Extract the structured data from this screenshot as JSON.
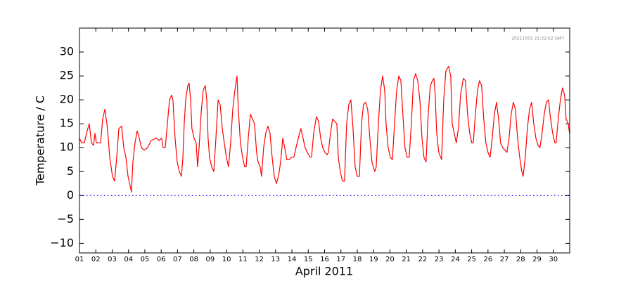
{
  "chart_data": {
    "type": "line",
    "xlabel": "April 2011",
    "ylabel": "Temperature / C",
    "annotation": "20211001 21:32:52 GMT",
    "color": "#ff0000",
    "reference_line": 0,
    "reference_color": "#0000ff",
    "xlim": [
      1,
      31
    ],
    "ylim": [
      -12,
      35
    ],
    "xticks": [
      {
        "value": 1,
        "label": "01"
      },
      {
        "value": 2,
        "label": "02"
      },
      {
        "value": 3,
        "label": "03"
      },
      {
        "value": 4,
        "label": "04"
      },
      {
        "value": 5,
        "label": "05"
      },
      {
        "value": 6,
        "label": "06"
      },
      {
        "value": 7,
        "label": "07"
      },
      {
        "value": 8,
        "label": "08"
      },
      {
        "value": 9,
        "label": "09"
      },
      {
        "value": 10,
        "label": "10"
      },
      {
        "value": 11,
        "label": "11"
      },
      {
        "value": 12,
        "label": "12"
      },
      {
        "value": 13,
        "label": "13"
      },
      {
        "value": 14,
        "label": "14"
      },
      {
        "value": 15,
        "label": "15"
      },
      {
        "value": 16,
        "label": "16"
      },
      {
        "value": 17,
        "label": "17"
      },
      {
        "value": 18,
        "label": "18"
      },
      {
        "value": 19,
        "label": "19"
      },
      {
        "value": 20,
        "label": "20"
      },
      {
        "value": 21,
        "label": "21"
      },
      {
        "value": 22,
        "label": "22"
      },
      {
        "value": 23,
        "label": "23"
      },
      {
        "value": 24,
        "label": "24"
      },
      {
        "value": 25,
        "label": "25"
      },
      {
        "value": 26,
        "label": "26"
      },
      {
        "value": 27,
        "label": "27"
      },
      {
        "value": 28,
        "label": "28"
      },
      {
        "value": 29,
        "label": "29"
      },
      {
        "value": 30,
        "label": "30"
      }
    ],
    "yticks": [
      {
        "value": -10,
        "label": "−10"
      },
      {
        "value": -5,
        "label": "−5"
      },
      0,
      5,
      10,
      15,
      20,
      25,
      30
    ],
    "x": [
      1.0,
      1.13,
      1.3,
      1.43,
      1.6,
      1.73,
      1.86,
      1.95,
      2.03,
      2.16,
      2.29,
      2.42,
      2.55,
      2.68,
      2.76,
      2.85,
      3.02,
      3.15,
      3.28,
      3.41,
      3.58,
      3.71,
      3.84,
      3.97,
      4.1,
      4.18,
      4.27,
      4.4,
      4.53,
      4.66,
      4.79,
      4.96,
      5.17,
      5.39,
      5.69,
      5.86,
      6.03,
      6.12,
      6.25,
      6.38,
      6.51,
      6.64,
      6.72,
      6.85,
      6.98,
      7.11,
      7.24,
      7.33,
      7.41,
      7.5,
      7.63,
      7.71,
      7.8,
      7.88,
      8.01,
      8.14,
      8.23,
      8.32,
      8.44,
      8.57,
      8.7,
      8.79,
      8.87,
      8.96,
      9.09,
      9.22,
      9.35,
      9.48,
      9.61,
      9.74,
      9.86,
      9.99,
      10.12,
      10.25,
      10.38,
      10.51,
      10.64,
      10.72,
      10.85,
      10.98,
      11.11,
      11.2,
      11.33,
      11.46,
      11.59,
      11.71,
      11.84,
      11.93,
      12.06,
      12.14,
      12.27,
      12.4,
      12.53,
      12.66,
      12.79,
      12.92,
      13.05,
      13.18,
      13.31,
      13.44,
      13.56,
      13.69,
      13.82,
      13.99,
      14.12,
      14.25,
      14.43,
      14.55,
      14.68,
      14.81,
      14.94,
      15.11,
      15.2,
      15.33,
      15.5,
      15.63,
      15.76,
      15.89,
      16.02,
      16.15,
      16.23,
      16.36,
      16.49,
      16.62,
      16.75,
      16.84,
      16.96,
      17.09,
      17.22,
      17.35,
      17.48,
      17.61,
      17.74,
      17.87,
      18.0,
      18.13,
      18.26,
      18.38,
      18.51,
      18.64,
      18.77,
      18.9,
      19.07,
      19.16,
      19.29,
      19.42,
      19.55,
      19.68,
      19.76,
      19.89,
      20.02,
      20.15,
      20.28,
      20.41,
      20.54,
      20.67,
      20.79,
      20.92,
      21.05,
      21.18,
      21.31,
      21.44,
      21.57,
      21.7,
      21.83,
      21.96,
      22.08,
      22.21,
      22.34,
      22.47,
      22.6,
      22.69,
      22.77,
      22.86,
      22.99,
      23.16,
      23.29,
      23.42,
      23.59,
      23.72,
      23.81,
      23.93,
      24.06,
      24.19,
      24.32,
      24.49,
      24.62,
      24.75,
      24.88,
      25.01,
      25.1,
      25.23,
      25.36,
      25.48,
      25.61,
      25.74,
      25.87,
      26.0,
      26.13,
      26.26,
      26.39,
      26.52,
      26.65,
      26.77,
      26.9,
      27.03,
      27.16,
      27.29,
      27.42,
      27.55,
      27.68,
      27.81,
      27.94,
      28.07,
      28.15,
      28.28,
      28.41,
      28.54,
      28.67,
      28.8,
      28.93,
      29.06,
      29.18,
      29.31,
      29.44,
      29.57,
      29.7,
      29.83,
      29.96,
      30.09,
      30.17,
      30.3,
      30.43,
      30.56,
      30.69,
      30.78,
      30.91,
      30.99
    ],
    "values": [
      12,
      11,
      11,
      13,
      15,
      11,
      10.5,
      13,
      11,
      11,
      11,
      16,
      18,
      15,
      12,
      8,
      4,
      3,
      8,
      14,
      14.5,
      10,
      8,
      4,
      2,
      0.7,
      7,
      11,
      13.5,
      12,
      10,
      9.5,
      10,
      11.5,
      12,
      11.5,
      12,
      10,
      10,
      15,
      20,
      21,
      20,
      12,
      7,
      5,
      4,
      8,
      15,
      20,
      23,
      23.5,
      20,
      14,
      12,
      11,
      6,
      10,
      17,
      22,
      23,
      20,
      12,
      8,
      6,
      5,
      12,
      20,
      19,
      14,
      11,
      8,
      6,
      11,
      18,
      22,
      25,
      18,
      11,
      8,
      6,
      6,
      12,
      17,
      16,
      15,
      9,
      7,
      6,
      4,
      10,
      13,
      14.5,
      13,
      8,
      4,
      2.5,
      4,
      7,
      12,
      10,
      7.5,
      7.5,
      8,
      8,
      10,
      12.5,
      14,
      12,
      10,
      9,
      8,
      8,
      13,
      16.5,
      15.5,
      12,
      10,
      9,
      8.5,
      9,
      13,
      16,
      15.5,
      15,
      8,
      5,
      3,
      3,
      15,
      19,
      20,
      14,
      6,
      4,
      4,
      15,
      19,
      19.5,
      18,
      12,
      7,
      5,
      6,
      15,
      22,
      25,
      22,
      15,
      10,
      8,
      7.5,
      15,
      22,
      25,
      24,
      17,
      10,
      8,
      8,
      15,
      24,
      25.5,
      24,
      20,
      12,
      8,
      7,
      17,
      23,
      24,
      24.5,
      21,
      13,
      9,
      7.5,
      20,
      26,
      27,
      25,
      15,
      13,
      11,
      14,
      21,
      24.5,
      24,
      17,
      13,
      11,
      11,
      17,
      22,
      24,
      23,
      16,
      11,
      9,
      8,
      12,
      17,
      19.5,
      16,
      11,
      10,
      9.5,
      9,
      12,
      17,
      19.5,
      18,
      12,
      8,
      5,
      4,
      8,
      14,
      18,
      19.5,
      15,
      12,
      10.5,
      10,
      13,
      17,
      19.5,
      20,
      16,
      13,
      11,
      11,
      16,
      20,
      22.5,
      21,
      16,
      15,
      13
    ]
  }
}
